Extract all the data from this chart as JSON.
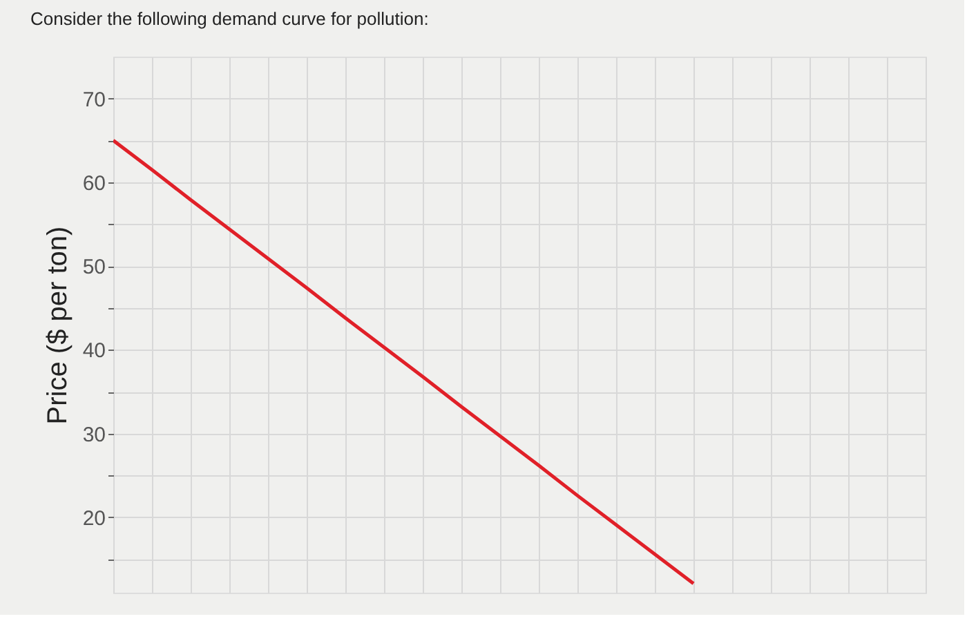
{
  "chart_data": {
    "type": "line",
    "title": "Consider the following demand curve for pollution:",
    "ylabel": "Price ($ per ton)",
    "categories": [
      null,
      null,
      null,
      null,
      null,
      null,
      null,
      null,
      null,
      null,
      null,
      null,
      null,
      null,
      null,
      null,
      null,
      null,
      null,
      null,
      null,
      null
    ],
    "series": [
      {
        "color": "#e02028",
        "values": [
          65,
          61.5,
          57.9,
          54.4,
          50.9,
          47.4,
          43.8,
          40.3,
          36.8,
          33.2,
          29.7,
          26.2,
          22.6,
          19.1,
          15.6,
          12.1,
          null,
          null,
          null,
          null,
          null,
          null
        ]
      }
    ],
    "ylim": [
      11,
      75
    ],
    "yticks": [
      {
        "value": 15,
        "label": null
      },
      20,
      {
        "value": 25,
        "label": null
      },
      30,
      {
        "value": 35,
        "label": null
      },
      40,
      {
        "value": 45,
        "label": null
      },
      50,
      {
        "value": 55,
        "label": null
      },
      60,
      {
        "value": 65,
        "label": null
      },
      70
    ],
    "grid": true,
    "tick_labels": "y",
    "marker": "none",
    "line_style": "solid",
    "legend": false
  }
}
